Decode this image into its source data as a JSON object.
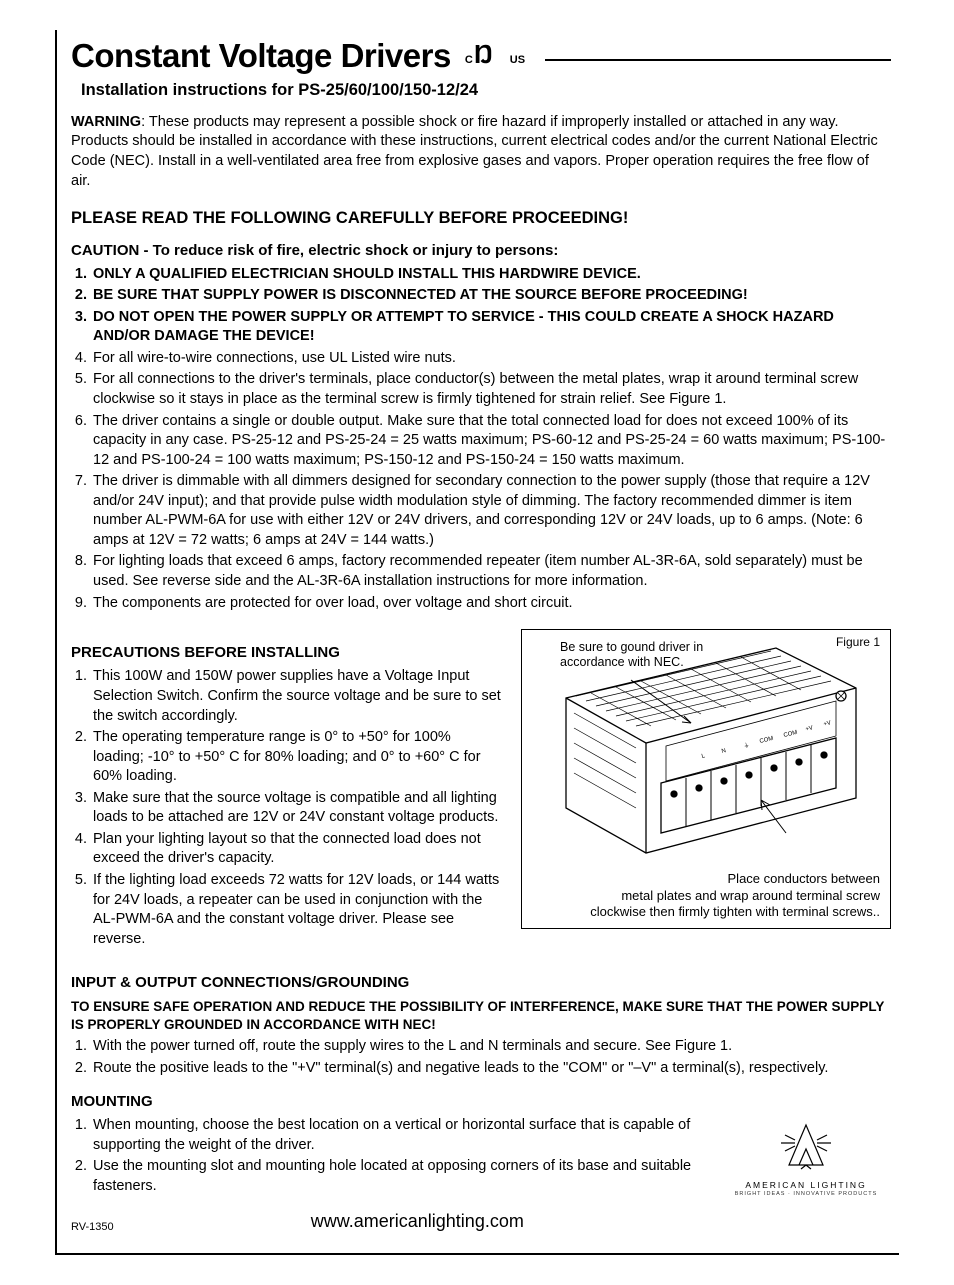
{
  "header": {
    "title": "Constant Voltage Drivers",
    "cert_c": "C",
    "cert_mark": "RU",
    "cert_us": "US",
    "subtitle": "Installation instructions for PS-25/60/100/150-12/24"
  },
  "warning": {
    "label": "WARNING",
    "text": ": These products may represent a possible shock or fire hazard if improperly installed or attached in any way. Products should be installed in accordance with these instructions, current electrical codes and/or the current National Electric Code (NEC). Install in a well-ventilated area free from explosive gases and vapors. Proper operation requires the free flow of air."
  },
  "read_heading": "PLEASE READ THE FOLLOWING CAREFULLY BEFORE PROCEEDING!",
  "caution": {
    "heading": "CAUTION - To reduce risk of fire, electric shock or injury to persons:",
    "items": [
      {
        "bold": true,
        "text": "ONLY A QUALIFIED ELECTRICIAN SHOULD INSTALL THIS HARDWIRE DEVICE."
      },
      {
        "bold": true,
        "text": "BE SURE THAT SUPPLY POWER IS DISCONNECTED AT THE SOURCE BEFORE PROCEEDING!"
      },
      {
        "bold": true,
        "text": "DO NOT OPEN THE POWER SUPPLY OR ATTEMPT TO SERVICE - THIS COULD CREATE A SHOCK HAZARD AND/OR DAMAGE THE DEVICE!"
      },
      {
        "bold": false,
        "text": "For all wire-to-wire connections, use UL Listed wire nuts."
      },
      {
        "bold": false,
        "text": "For all connections to the driver's terminals, place conductor(s) between the metal plates, wrap it around terminal screw clockwise so it stays in place as the terminal screw is firmly tightened for strain relief.  See Figure 1."
      },
      {
        "bold": false,
        "text": "The driver contains a single or double output. Make sure that the total connected load for does not exceed 100% of its capacity in any case. PS-25-12 and PS-25-24 = 25 watts maximum;  PS-60-12 and PS-25-24 = 60 watts maximum; PS-100-12 and PS-100-24 = 100 watts maximum; PS-150-12 and PS-150-24 = 150 watts maximum."
      },
      {
        "bold": false,
        "text": "The driver is dimmable with all dimmers designed for secondary connection to the power supply (those that require a 12V and/or 24V input); and that provide pulse width modulation style of dimming.  The factory recommended dimmer is item number AL-PWM-6A for use with either 12V or 24V drivers, and corresponding 12V or 24V loads, up to 6 amps. (Note: 6 amps at 12V = 72 watts; 6 amps at 24V = 144 watts.)"
      },
      {
        "bold": false,
        "text": "For lighting loads that exceed 6 amps, factory recommended repeater (item number AL-3R-6A, sold separately) must be used. See reverse side and the AL-3R-6A installation instructions for more information."
      },
      {
        "bold": false,
        "text": "The components are protected for over load, over voltage and short circuit."
      }
    ]
  },
  "precautions": {
    "heading": "PRECAUTIONS BEFORE INSTALLING",
    "items": [
      "This 100W and 150W power supplies have a Voltage Input Selection Switch. Confirm the source voltage and be sure to set the switch accordingly.",
      "The operating temperature range is 0°  to +50° for 100% loading; -10°  to +50° C for 80% loading; and 0° to +60° C for 60% loading.",
      "Make sure that the source voltage is compatible and all lighting loads to be attached are 12V or 24V constant voltage products.",
      "Plan your lighting layout so that the connected load does not exceed the driver's capacity.",
      "If the lighting load exceeds 72 watts for 12V loads, or 144 watts for 24V loads, a repeater can be used in conjunction with the AL-PWM-6A and the constant voltage driver.  Please see reverse."
    ]
  },
  "figure": {
    "label": "Figure 1",
    "callout_top_l1": "Be sure to gound driver in",
    "callout_top_l2": "accordance with NEC.",
    "callout_bot_l1": "Place conductors between",
    "callout_bot_l2": "metal plates and wrap around terminal screw",
    "callout_bot_l3": "clockwise then firmly tighten with terminal screws.."
  },
  "io": {
    "heading": "INPUT & OUTPUT CONNECTIONS/GROUNDING",
    "sub": "TO ENSURE SAFE OPERATION AND REDUCE THE POSSIBILITY OF INTERFERENCE, MAKE SURE THAT THE POWER SUPPLY IS PROPERLY GROUNDED IN ACCORDANCE WITH NEC!",
    "items": [
      "With the power turned off, route the supply wires to the L and N terminals and secure. See Figure 1.",
      "Route the positive leads to the  \"+V\" terminal(s) and negative leads to the \"COM\"  or \"–V\" a terminal(s), respectively."
    ]
  },
  "mounting": {
    "heading": "MOUNTING",
    "items": [
      "When mounting, choose the best location on a vertical or horizontal surface that is capable of supporting the weight of the driver.",
      "Use the mounting slot and mounting hole located at opposing corners of its base and suitable fasteners."
    ]
  },
  "footer": {
    "rev": "RV-1350",
    "url": "www.americanlighting.com",
    "logo_line1": "AMERICAN LIGHTING",
    "logo_line2": "BRIGHT IDEAS · INNOVATIVE PRODUCTS"
  },
  "colors": {
    "text": "#000000",
    "background": "#ffffff",
    "rule": "#000000",
    "figure_stroke": "#000000"
  }
}
